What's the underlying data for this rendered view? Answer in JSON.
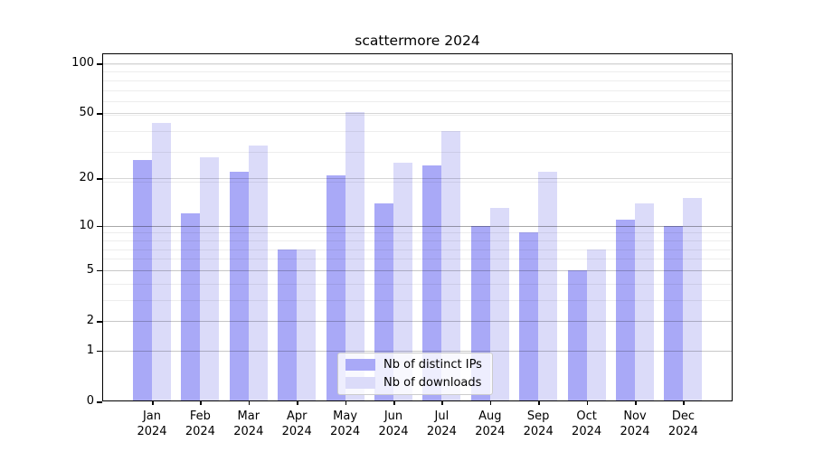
{
  "figure": {
    "title": "scattermore 2024"
  },
  "colors": {
    "series1": "#a9a9f7",
    "series2": "#dbdbf9",
    "spine": "#000000",
    "background": "#ffffff"
  },
  "chart_data": {
    "type": "bar",
    "title": "scattermore 2024",
    "categories": [
      "Jan",
      "Feb",
      "Mar",
      "Apr",
      "May",
      "Jun",
      "Jul",
      "Aug",
      "Sep",
      "Oct",
      "Nov",
      "Dec"
    ],
    "category_year": "2024",
    "series": [
      {
        "name": "Nb of distinct IPs",
        "color": "#a9a9f7",
        "values": [
          26,
          12,
          22,
          7,
          21,
          14,
          24,
          10,
          9,
          5,
          11,
          10
        ]
      },
      {
        "name": "Nb of downloads",
        "color": "#dbdbf9",
        "values": [
          44,
          27,
          32,
          7,
          51,
          25,
          39,
          13,
          22,
          7,
          14,
          15
        ]
      }
    ],
    "xlabel": "",
    "ylabel": "",
    "yscale": "log1p",
    "yticks": [
      0,
      1,
      2,
      5,
      10,
      20,
      50,
      100
    ],
    "major_gridlines": [
      1,
      2,
      5,
      20,
      50,
      100
    ],
    "emphasized_gridline": 10,
    "minor_gridlines": [
      1,
      2,
      3,
      4,
      5,
      6,
      7,
      8,
      9,
      19,
      29,
      39,
      49,
      59,
      69,
      79,
      89,
      99
    ],
    "ylim": [
      0,
      115
    ],
    "grid": true,
    "legend_position": "lower center"
  }
}
